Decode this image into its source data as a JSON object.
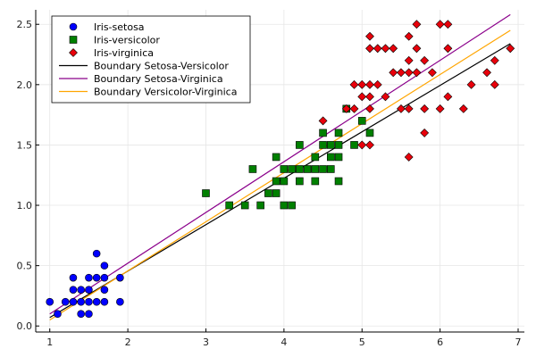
{
  "chart_data": {
    "type": "scatter",
    "title": "",
    "xlabel": "",
    "ylabel": "",
    "xlim": [
      0.82,
      7.08
    ],
    "ylim": [
      -0.05,
      2.62
    ],
    "xticks": [
      1,
      2,
      3,
      4,
      5,
      6,
      7
    ],
    "yticks": [
      0.0,
      0.5,
      1.0,
      1.5,
      2.0,
      2.5
    ],
    "xtick_labels": [
      "1",
      "2",
      "3",
      "4",
      "5",
      "6",
      "7"
    ],
    "ytick_labels": [
      "0.0",
      "0.5",
      "1.0",
      "1.5",
      "2.0",
      "2.5"
    ],
    "grid": true,
    "legend_position": "top-left",
    "series": [
      {
        "name": "Iris-setosa",
        "kind": "scatter",
        "marker": "circle",
        "color": "#0000ff",
        "points": [
          [
            1.0,
            0.2
          ],
          [
            1.1,
            0.1
          ],
          [
            1.2,
            0.2
          ],
          [
            1.3,
            0.2
          ],
          [
            1.3,
            0.3
          ],
          [
            1.3,
            0.4
          ],
          [
            1.4,
            0.1
          ],
          [
            1.4,
            0.2
          ],
          [
            1.4,
            0.3
          ],
          [
            1.5,
            0.1
          ],
          [
            1.5,
            0.2
          ],
          [
            1.5,
            0.3
          ],
          [
            1.5,
            0.4
          ],
          [
            1.6,
            0.2
          ],
          [
            1.6,
            0.4
          ],
          [
            1.6,
            0.6
          ],
          [
            1.7,
            0.2
          ],
          [
            1.7,
            0.3
          ],
          [
            1.7,
            0.4
          ],
          [
            1.7,
            0.5
          ],
          [
            1.9,
            0.2
          ],
          [
            1.9,
            0.4
          ]
        ]
      },
      {
        "name": "Iris-versicolor",
        "kind": "scatter",
        "marker": "square",
        "color": "#008000",
        "points": [
          [
            3.0,
            1.1
          ],
          [
            3.3,
            1.0
          ],
          [
            3.5,
            1.0
          ],
          [
            3.6,
            1.3
          ],
          [
            3.7,
            1.0
          ],
          [
            3.8,
            1.1
          ],
          [
            3.9,
            1.1
          ],
          [
            3.9,
            1.2
          ],
          [
            3.9,
            1.4
          ],
          [
            4.0,
            1.0
          ],
          [
            4.0,
            1.2
          ],
          [
            4.0,
            1.3
          ],
          [
            4.1,
            1.0
          ],
          [
            4.1,
            1.3
          ],
          [
            4.2,
            1.2
          ],
          [
            4.2,
            1.3
          ],
          [
            4.2,
            1.5
          ],
          [
            4.3,
            1.3
          ],
          [
            4.4,
            1.2
          ],
          [
            4.4,
            1.3
          ],
          [
            4.4,
            1.4
          ],
          [
            4.5,
            1.3
          ],
          [
            4.5,
            1.5
          ],
          [
            4.5,
            1.6
          ],
          [
            4.6,
            1.3
          ],
          [
            4.6,
            1.4
          ],
          [
            4.6,
            1.5
          ],
          [
            4.7,
            1.2
          ],
          [
            4.7,
            1.4
          ],
          [
            4.7,
            1.5
          ],
          [
            4.7,
            1.6
          ],
          [
            4.8,
            1.8
          ],
          [
            4.9,
            1.5
          ],
          [
            5.0,
            1.7
          ],
          [
            5.1,
            1.6
          ]
        ]
      },
      {
        "name": "Iris-virginica",
        "kind": "scatter",
        "marker": "diamond",
        "color": "#e8000b",
        "points": [
          [
            4.5,
            1.7
          ],
          [
            4.8,
            1.8
          ],
          [
            4.9,
            1.8
          ],
          [
            4.9,
            2.0
          ],
          [
            5.0,
            1.5
          ],
          [
            5.0,
            1.9
          ],
          [
            5.0,
            2.0
          ],
          [
            5.1,
            1.5
          ],
          [
            5.1,
            1.8
          ],
          [
            5.1,
            1.9
          ],
          [
            5.1,
            2.0
          ],
          [
            5.1,
            2.3
          ],
          [
            5.1,
            2.4
          ],
          [
            5.2,
            2.0
          ],
          [
            5.2,
            2.3
          ],
          [
            5.3,
            1.9
          ],
          [
            5.3,
            2.3
          ],
          [
            5.4,
            2.1
          ],
          [
            5.4,
            2.3
          ],
          [
            5.5,
            1.8
          ],
          [
            5.5,
            2.1
          ],
          [
            5.6,
            1.4
          ],
          [
            5.6,
            1.8
          ],
          [
            5.6,
            2.1
          ],
          [
            5.6,
            2.2
          ],
          [
            5.6,
            2.4
          ],
          [
            5.7,
            2.1
          ],
          [
            5.7,
            2.3
          ],
          [
            5.7,
            2.5
          ],
          [
            5.8,
            1.6
          ],
          [
            5.8,
            1.8
          ],
          [
            5.8,
            2.2
          ],
          [
            5.9,
            2.1
          ],
          [
            6.0,
            1.8
          ],
          [
            6.0,
            2.5
          ],
          [
            6.1,
            1.9
          ],
          [
            6.1,
            2.3
          ],
          [
            6.1,
            2.5
          ],
          [
            6.3,
            1.8
          ],
          [
            6.4,
            2.0
          ],
          [
            6.6,
            2.1
          ],
          [
            6.7,
            2.0
          ],
          [
            6.7,
            2.2
          ],
          [
            6.9,
            2.3
          ]
        ]
      },
      {
        "name": "Boundary Setosa-Versicolor",
        "kind": "line",
        "color": "#000000",
        "points": [
          [
            1.0,
            0.07
          ],
          [
            6.9,
            2.34
          ]
        ]
      },
      {
        "name": "Boundary Setosa-Virginica",
        "kind": "line",
        "color": "#8b008b",
        "points": [
          [
            1.0,
            0.1
          ],
          [
            6.9,
            2.58
          ]
        ]
      },
      {
        "name": "Boundary Versicolor-Virginica",
        "kind": "line",
        "color": "#ffa500",
        "points": [
          [
            1.0,
            0.05
          ],
          [
            6.9,
            2.45
          ]
        ]
      }
    ]
  }
}
